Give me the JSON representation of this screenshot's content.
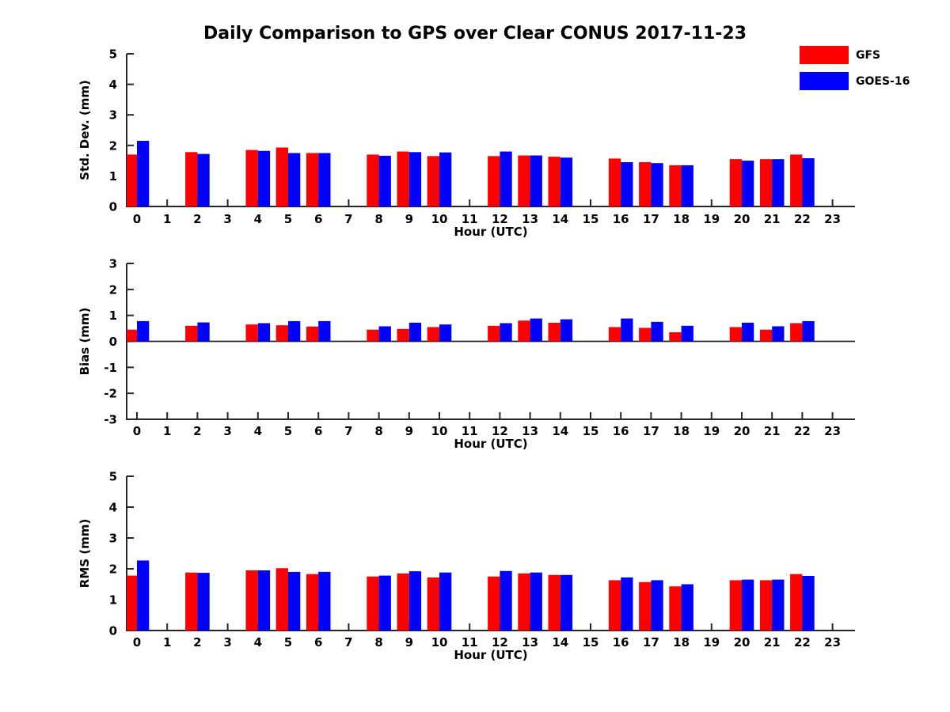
{
  "title": "Daily Comparison to GPS over Clear CONUS 2017-11-23",
  "legend": {
    "position": "upper-right",
    "items": [
      {
        "label": "GFS",
        "color": "#ff0000"
      },
      {
        "label": "GOES-16",
        "color": "#0000ff"
      }
    ]
  },
  "chart_data": [
    {
      "id": "stddev",
      "type": "bar",
      "title": "",
      "xlabel": "Hour (UTC)",
      "ylabel": "Std. Dev. (mm)",
      "ylim": [
        0,
        5
      ],
      "yticks": [
        0,
        1,
        2,
        3,
        4,
        5
      ],
      "grid": false,
      "categories": [
        0,
        1,
        2,
        3,
        4,
        5,
        6,
        7,
        8,
        9,
        10,
        11,
        12,
        13,
        14,
        15,
        16,
        17,
        18,
        19,
        20,
        21,
        22,
        23
      ],
      "series": [
        {
          "name": "GFS",
          "color": "#ff0000",
          "values": [
            1.7,
            null,
            1.78,
            null,
            1.85,
            1.93,
            1.75,
            null,
            1.7,
            1.8,
            1.65,
            null,
            1.65,
            1.67,
            1.63,
            null,
            1.57,
            1.45,
            1.35,
            null,
            1.55,
            1.55,
            1.7,
            null
          ]
        },
        {
          "name": "GOES-16",
          "color": "#0000ff",
          "values": [
            2.15,
            null,
            1.72,
            null,
            1.82,
            1.75,
            1.75,
            null,
            1.66,
            1.78,
            1.77,
            null,
            1.8,
            1.67,
            1.6,
            null,
            1.45,
            1.42,
            1.35,
            null,
            1.5,
            1.55,
            1.58,
            null
          ]
        }
      ]
    },
    {
      "id": "bias",
      "type": "bar",
      "title": "",
      "xlabel": "Hour (UTC)",
      "ylabel": "Bias (mm)",
      "ylim": [
        -3,
        3
      ],
      "yticks": [
        -3,
        -2,
        -1,
        0,
        1,
        2,
        3
      ],
      "grid": false,
      "zero_line": true,
      "categories": [
        0,
        1,
        2,
        3,
        4,
        5,
        6,
        7,
        8,
        9,
        10,
        11,
        12,
        13,
        14,
        15,
        16,
        17,
        18,
        19,
        20,
        21,
        22,
        23
      ],
      "series": [
        {
          "name": "GFS",
          "color": "#ff0000",
          "values": [
            0.45,
            null,
            0.6,
            null,
            0.65,
            0.62,
            0.57,
            null,
            0.45,
            0.48,
            0.55,
            null,
            0.6,
            0.8,
            0.72,
            null,
            0.55,
            0.52,
            0.35,
            null,
            0.55,
            0.45,
            0.7,
            null
          ]
        },
        {
          "name": "GOES-16",
          "color": "#0000ff",
          "values": [
            0.78,
            null,
            0.73,
            null,
            0.7,
            0.78,
            0.78,
            null,
            0.58,
            0.72,
            0.65,
            null,
            0.7,
            0.88,
            0.85,
            null,
            0.88,
            0.75,
            0.6,
            null,
            0.72,
            0.58,
            0.78,
            null
          ]
        }
      ]
    },
    {
      "id": "rms",
      "type": "bar",
      "title": "",
      "xlabel": "Hour (UTC)",
      "ylabel": "RMS (mm)",
      "ylim": [
        0,
        5
      ],
      "yticks": [
        0,
        1,
        2,
        3,
        4,
        5
      ],
      "grid": false,
      "categories": [
        0,
        1,
        2,
        3,
        4,
        5,
        6,
        7,
        8,
        9,
        10,
        11,
        12,
        13,
        14,
        15,
        16,
        17,
        18,
        19,
        20,
        21,
        22,
        23
      ],
      "series": [
        {
          "name": "GFS",
          "color": "#ff0000",
          "values": [
            1.78,
            null,
            1.88,
            null,
            1.95,
            2.02,
            1.83,
            null,
            1.75,
            1.85,
            1.72,
            null,
            1.75,
            1.85,
            1.8,
            null,
            1.63,
            1.57,
            1.43,
            null,
            1.63,
            1.63,
            1.83,
            null
          ]
        },
        {
          "name": "GOES-16",
          "color": "#0000ff",
          "values": [
            2.27,
            null,
            1.87,
            null,
            1.95,
            1.9,
            1.9,
            null,
            1.78,
            1.92,
            1.88,
            null,
            1.93,
            1.88,
            1.8,
            null,
            1.72,
            1.63,
            1.5,
            null,
            1.65,
            1.65,
            1.77,
            null
          ]
        }
      ]
    }
  ]
}
